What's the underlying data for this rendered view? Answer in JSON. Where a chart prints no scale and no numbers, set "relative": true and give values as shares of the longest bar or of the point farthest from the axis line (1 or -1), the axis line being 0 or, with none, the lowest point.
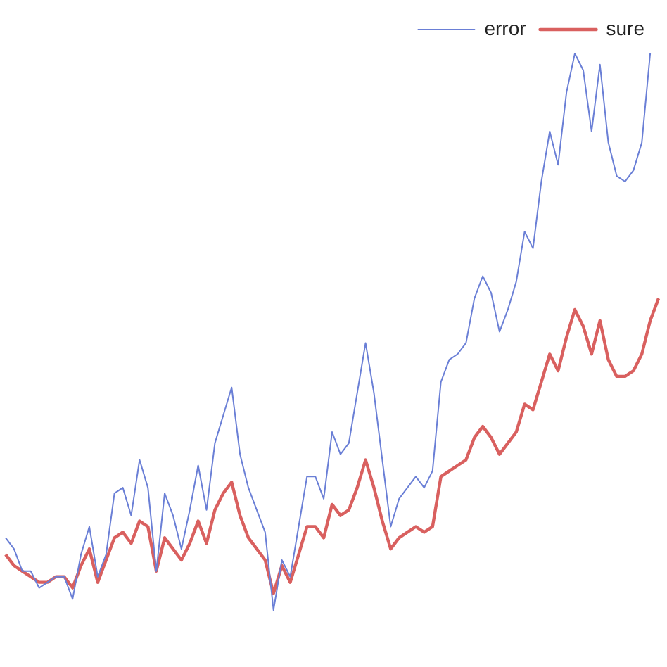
{
  "chart_data": {
    "type": "line",
    "relative": true,
    "grid": false,
    "legend": "top right",
    "marker": "none",
    "line_style": "solid",
    "categories": [
      null,
      null,
      null,
      null,
      null,
      null,
      null,
      null,
      null,
      null,
      null,
      null,
      null,
      null,
      null,
      null,
      null,
      null,
      null,
      null,
      null,
      null,
      null,
      null,
      null,
      null,
      null,
      null,
      null,
      null,
      null,
      null,
      null,
      null,
      null,
      null,
      null,
      null,
      null,
      null,
      null,
      null,
      null,
      null,
      null,
      null,
      null,
      null,
      null,
      null,
      null,
      null,
      null,
      null,
      null,
      null,
      null,
      null,
      null,
      null,
      null,
      null,
      null,
      null,
      null,
      null,
      null,
      null,
      null,
      null,
      null,
      null,
      null,
      null,
      null,
      null,
      null,
      null,
      null
    ],
    "series": [
      {
        "name": "error",
        "color": "#6a7fd6",
        "values": [
          0.13,
          0.11,
          0.07,
          0.07,
          0.04,
          0.05,
          0.06,
          0.06,
          0.02,
          0.1,
          0.15,
          0.06,
          0.1,
          0.21,
          0.22,
          0.17,
          0.27,
          0.22,
          0.07,
          0.21,
          0.17,
          0.11,
          0.18,
          0.26,
          0.18,
          0.3,
          0.35,
          0.4,
          0.28,
          0.22,
          0.18,
          0.14,
          0,
          0.09,
          0.06,
          0.15,
          0.24,
          0.24,
          0.2,
          0.32,
          0.28,
          0.3,
          0.39,
          0.48,
          0.39,
          0.27,
          0.15,
          0.2,
          0.22,
          0.24,
          0.22,
          0.25,
          0.41,
          0.45,
          0.46,
          0.48,
          0.56,
          0.6,
          0.57,
          0.5,
          0.54,
          0.59,
          0.68,
          0.65,
          0.77,
          0.86,
          0.8,
          0.93,
          1,
          0.97,
          0.86,
          0.98,
          0.84,
          0.78,
          0.77,
          0.79,
          0.84,
          1,
          null
        ]
      },
      {
        "name": "sure",
        "color": "#d9605f",
        "values": [
          0.1,
          0.08,
          0.07,
          0.06,
          0.05,
          0.05,
          0.06,
          0.06,
          0.04,
          0.08,
          0.11,
          0.05,
          0.09,
          0.13,
          0.14,
          0.12,
          0.16,
          0.15,
          0.07,
          0.13,
          0.11,
          0.09,
          0.12,
          0.16,
          0.12,
          0.18,
          0.21,
          0.23,
          0.17,
          0.13,
          0.11,
          0.09,
          0.03,
          0.08,
          0.05,
          0.1,
          0.15,
          0.15,
          0.13,
          0.19,
          0.17,
          0.18,
          0.22,
          0.27,
          0.22,
          0.16,
          0.11,
          0.13,
          0.14,
          0.15,
          0.14,
          0.15,
          0.24,
          0.25,
          0.26,
          0.27,
          0.31,
          0.33,
          0.31,
          0.28,
          0.3,
          0.32,
          0.37,
          0.36,
          0.41,
          0.46,
          0.43,
          0.49,
          0.54,
          0.51,
          0.46,
          0.52,
          0.45,
          0.42,
          0.42,
          0.43,
          0.46,
          0.52,
          0.56
        ]
      }
    ]
  }
}
